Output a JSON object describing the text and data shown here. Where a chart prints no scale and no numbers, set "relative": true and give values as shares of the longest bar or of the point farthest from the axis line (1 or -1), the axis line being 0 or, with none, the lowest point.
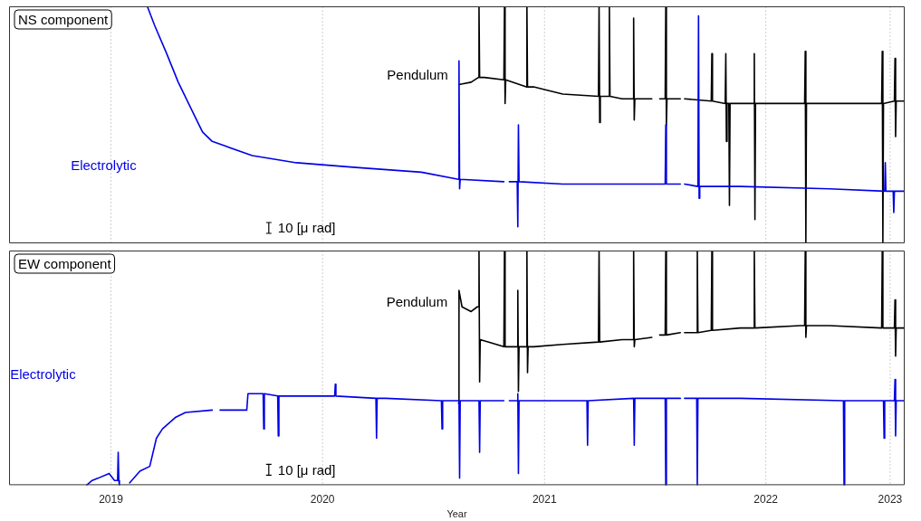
{
  "chart_data": [
    {
      "type": "line",
      "title": "NS component",
      "relative": true,
      "grid": "x",
      "tick_labels": false,
      "annotations": [
        "10 [μ rad]"
      ],
      "xlim": [
        "2019-01-31",
        "2023-02-16"
      ],
      "xticks": [
        {
          "value": "2019-07-18",
          "label": null
        },
        {
          "value": "2020-07-01",
          "label": null
        },
        {
          "value": "2021-07-02",
          "label": null
        },
        {
          "value": "2022-07-02",
          "label": null
        },
        {
          "value": "2023-01-23",
          "label": null
        }
      ],
      "series": [
        {
          "name": "Electrolytic",
          "color": "#0000e6",
          "x": [
            "2019-09-16",
            "2019-09-28",
            "2019-10-18",
            "2019-11-06",
            "2019-11-25",
            "2019-12-16",
            "2020-01-01",
            "2020-01-23",
            "2020-03-07",
            "2020-05-19",
            "2020-08-25",
            "2020-12-11",
            "2021-02-10",
            "2021-02-11",
            "2021-02-12",
            "2021-02-13",
            "2021-04-26",
            "2021-05-01",
            "2021-05-05",
            "2021-05-18",
            "2021-05-19",
            "2021-05-20",
            "2021-05-21",
            "2021-08-01",
            "2021-12-26",
            "2022-01-17",
            "2022-01-18",
            "2022-01-19",
            "2022-02-11",
            "2022-02-15",
            "2022-02-18",
            "2022-03-12",
            "2022-03-13",
            "2022-03-14",
            "2022-03-15",
            "2022-05-21",
            "2022-10-15",
            "2023-01-14",
            "2023-01-15",
            "2023-01-16",
            "2023-01-28",
            "2023-01-29",
            "2023-01-30",
            "2023-02-15"
          ],
          "values": [
            1.0,
            0.92,
            0.8,
            0.68,
            0.58,
            0.47,
            0.43,
            0.41,
            0.37,
            0.34,
            0.32,
            0.3,
            0.27,
            0.77,
            0.23,
            0.27,
            0.26,
            null,
            0.26,
            0.26,
            0.07,
            0.5,
            0.26,
            0.25,
            0.25,
            0.25,
            0.5,
            0.25,
            0.25,
            null,
            0.25,
            0.24,
            0.96,
            0.19,
            0.24,
            0.24,
            0.23,
            0.22,
            0.34,
            0.22,
            0.22,
            0.13,
            0.22,
            0.22
          ]
        },
        {
          "name": "Pendulum",
          "color": "#000000",
          "x": [
            "2021-02-11",
            "2021-03-03",
            "2021-03-15",
            "2021-03-16",
            "2021-03-17",
            "2021-03-25",
            "2021-04-26",
            "2021-04-27",
            "2021-04-28",
            "2021-04-29",
            "2021-06-02",
            "2021-06-03",
            "2021-06-04",
            "2021-06-14",
            "2021-08-01",
            "2021-09-29",
            "2021-09-30",
            "2021-10-01",
            "2021-10-02",
            "2021-10-16",
            "2021-10-17",
            "2021-10-18",
            "2021-11-07",
            "2021-11-25",
            "2021-11-26",
            "2021-11-27",
            "2021-11-28",
            "2021-12-26",
            "2022-01-03",
            "2022-01-08",
            "2022-01-17",
            "2022-01-18",
            "2022-01-19",
            "2022-01-20",
            "2022-02-11",
            "2022-02-15",
            "2022-02-18",
            "2022-04-03",
            "2022-04-04",
            "2022-04-05",
            "2022-04-26",
            "2022-04-27",
            "2022-04-28",
            "2022-04-29",
            "2022-05-02",
            "2022-05-03",
            "2022-05-04",
            "2022-06-12",
            "2022-06-13",
            "2022-06-14",
            "2022-06-15",
            "2022-08-28",
            "2022-09-04",
            "2022-09-05",
            "2022-09-06",
            "2022-09-07",
            "2023-01-09",
            "2023-01-10",
            "2023-01-11",
            "2023-01-12",
            "2023-01-30",
            "2023-01-31",
            "2023-02-01",
            "2023-02-02",
            "2023-02-15"
          ],
          "values": [
            0.67,
            0.68,
            0.7,
            1.0,
            0.7,
            0.7,
            0.69,
            1.0,
            0.59,
            0.69,
            0.66,
            1.0,
            0.66,
            0.66,
            0.63,
            0.62,
            1.0,
            0.51,
            0.62,
            0.62,
            1.0,
            0.62,
            0.61,
            0.61,
            0.95,
            0.52,
            0.61,
            0.61,
            null,
            0.61,
            0.61,
            1.0,
            0.5,
            0.61,
            0.61,
            null,
            0.61,
            0.6,
            0.8,
            0.6,
            0.59,
            0.8,
            0.43,
            0.59,
            0.59,
            0.16,
            0.59,
            0.59,
            0.8,
            0.1,
            0.59,
            0.59,
            0.59,
            0.81,
            0.0,
            0.59,
            0.59,
            0.81,
            0.0,
            0.59,
            0.6,
            0.78,
            0.45,
            0.6,
            0.6
          ]
        }
      ]
    },
    {
      "type": "line",
      "title": "EW component",
      "relative": true,
      "grid": "x",
      "tick_labels": "x",
      "xlabel": "Year",
      "annotations": [
        "10 [μ rad]"
      ],
      "xlim": [
        "2019-01-31",
        "2023-02-16"
      ],
      "xticks": [
        {
          "value": "2019-07-18",
          "label": "2019"
        },
        {
          "value": "2020-07-01",
          "label": "2020"
        },
        {
          "value": "2021-07-02",
          "label": "2021"
        },
        {
          "value": "2022-07-02",
          "label": "2022"
        },
        {
          "value": "2023-01-23",
          "label": "2023"
        }
      ],
      "series": [
        {
          "name": "Electrolytic",
          "color": "#0000e6",
          "x": [
            "2019-06-08",
            "2019-06-17",
            "2019-06-27",
            "2019-07-15",
            "2019-07-24",
            "2019-07-29",
            "2019-07-30",
            "2019-07-31",
            "2019-08-01",
            "2019-08-10",
            "2019-08-18",
            "2019-09-04",
            "2019-09-20",
            "2019-10-01",
            "2019-10-11",
            "2019-11-02",
            "2019-11-18",
            "2020-01-01",
            "2020-01-08",
            "2020-01-14",
            "2020-02-27",
            "2020-02-29",
            "2020-03-25",
            "2020-03-26",
            "2020-03-27",
            "2020-04-18",
            "2020-04-19",
            "2020-04-20",
            "2020-05-19",
            "2020-07-21",
            "2020-07-22",
            "2020-07-23",
            "2020-09-27",
            "2020-09-28",
            "2020-09-29",
            "2020-10-13",
            "2021-01-13",
            "2021-01-14",
            "2021-01-15",
            "2021-02-11",
            "2021-02-12",
            "2021-02-13",
            "2021-03-16",
            "2021-03-17",
            "2021-03-18",
            "2021-04-26",
            "2021-05-01",
            "2021-05-05",
            "2021-05-18",
            "2021-05-19",
            "2021-05-20",
            "2021-05-21",
            "2021-08-01",
            "2021-09-10",
            "2021-09-11",
            "2021-09-12",
            "2021-11-26",
            "2021-11-27",
            "2021-11-28",
            "2021-12-26",
            "2022-01-17",
            "2022-01-18",
            "2022-01-19",
            "2022-02-11",
            "2022-02-15",
            "2022-02-18",
            "2022-03-10",
            "2022-03-11",
            "2022-03-12",
            "2022-05-21",
            "2022-11-07",
            "2022-11-08",
            "2022-11-09",
            "2023-01-12",
            "2023-01-13",
            "2023-01-14",
            "2023-01-30",
            "2023-01-31",
            "2023-02-01",
            "2023-02-02",
            "2023-02-15"
          ],
          "values": [
            0.0,
            0.02,
            0.03,
            0.05,
            0.02,
            0.02,
            0.14,
            0.02,
            0.0,
            null,
            0.01,
            0.06,
            0.08,
            0.2,
            0.24,
            0.29,
            0.31,
            0.32,
            null,
            0.32,
            0.32,
            0.39,
            0.39,
            0.24,
            0.39,
            0.38,
            0.21,
            0.38,
            0.38,
            0.38,
            0.43,
            0.38,
            0.37,
            0.2,
            0.37,
            0.37,
            0.36,
            0.24,
            0.36,
            0.36,
            0.03,
            0.36,
            0.36,
            0.14,
            0.36,
            0.36,
            null,
            0.36,
            0.36,
            0.39,
            0.05,
            0.36,
            0.36,
            0.36,
            0.17,
            0.36,
            0.37,
            0.17,
            0.37,
            0.37,
            0.37,
            0.0,
            0.37,
            0.37,
            null,
            0.37,
            0.37,
            0.0,
            0.37,
            0.37,
            0.36,
            0.0,
            0.36,
            0.36,
            0.2,
            0.36,
            0.36,
            0.45,
            0.21,
            0.36,
            0.36
          ]
        },
        {
          "name": "Pendulum",
          "color": "#000000",
          "x": [
            "2021-02-10",
            "2021-02-11",
            "2021-02-16",
            "2021-03-03",
            "2021-03-13",
            "2021-03-15",
            "2021-03-16",
            "2021-03-17",
            "2021-03-18",
            "2021-04-01",
            "2021-04-26",
            "2021-04-27",
            "2021-04-28",
            "2021-05-18",
            "2021-05-19",
            "2021-05-20",
            "2021-05-21",
            "2021-06-02",
            "2021-06-03",
            "2021-06-04",
            "2021-06-05",
            "2021-06-14",
            "2021-08-01",
            "2021-09-29",
            "2021-09-30",
            "2021-10-01",
            "2021-11-07",
            "2021-11-25",
            "2021-11-26",
            "2021-11-27",
            "2021-11-28",
            "2021-12-26",
            "2022-01-03",
            "2022-01-08",
            "2022-01-17",
            "2022-01-18",
            "2022-01-19",
            "2022-02-11",
            "2022-02-15",
            "2022-02-18",
            "2022-03-10",
            "2022-03-11",
            "2022-03-12",
            "2022-04-03",
            "2022-04-04",
            "2022-04-05",
            "2022-05-21",
            "2022-06-12",
            "2022-06-13",
            "2022-06-14",
            "2022-08-28",
            "2022-09-04",
            "2022-09-05",
            "2022-09-06",
            "2022-09-07",
            "2022-10-15",
            "2023-01-09",
            "2023-01-10",
            "2023-01-11",
            "2023-01-30",
            "2023-01-31",
            "2023-02-01",
            "2023-02-02",
            "2023-02-15"
          ],
          "values": [
            0.35,
            0.83,
            0.76,
            0.74,
            0.76,
            0.76,
            1.0,
            0.44,
            0.62,
            0.61,
            0.59,
            1.0,
            0.59,
            0.59,
            0.83,
            0.4,
            0.59,
            0.59,
            1.0,
            0.48,
            0.59,
            0.59,
            0.6,
            0.61,
            1.0,
            0.61,
            0.62,
            0.62,
            1.0,
            0.59,
            0.62,
            0.63,
            null,
            0.64,
            0.64,
            1.0,
            0.64,
            0.65,
            null,
            0.65,
            0.65,
            1.0,
            0.65,
            0.66,
            1.0,
            0.66,
            0.67,
            0.67,
            1.0,
            0.67,
            0.68,
            0.68,
            1.0,
            0.63,
            0.68,
            0.68,
            0.67,
            1.0,
            0.67,
            0.67,
            0.79,
            0.55,
            0.67,
            0.67
          ]
        }
      ]
    }
  ]
}
